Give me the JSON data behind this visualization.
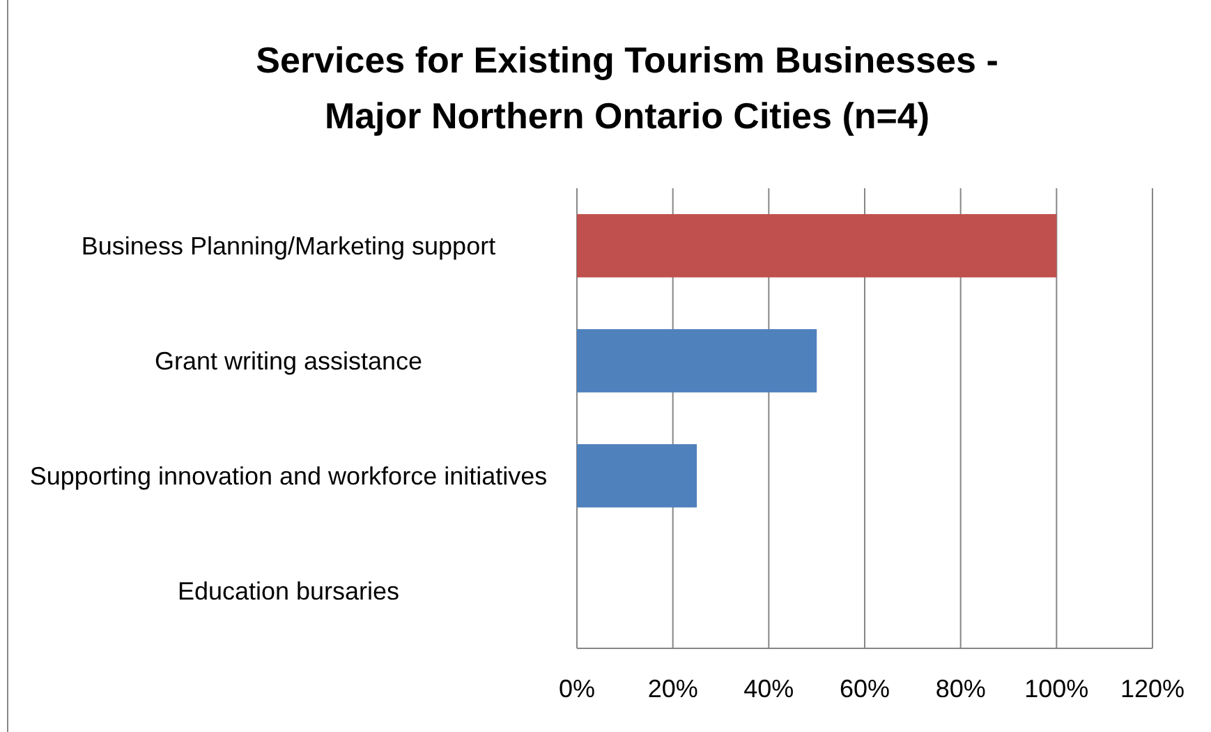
{
  "chart_data": {
    "type": "bar",
    "orientation": "horizontal",
    "title": "Services for Existing Tourism Businesses  -\nMajor Northern Ontario Cities (n=4)",
    "categories": [
      "Business Planning/Marketing support",
      "Grant writing assistance",
      "Supporting innovation and workforce initiatives",
      "Education bursaries"
    ],
    "values": [
      100,
      50,
      25,
      0
    ],
    "colors": [
      "#c0504d",
      "#4f81bd",
      "#4f81bd",
      "#4f81bd"
    ],
    "xlim": [
      0,
      120
    ],
    "xticks": [
      {
        "value": 0,
        "label": "0%"
      },
      {
        "value": 20,
        "label": "20%"
      },
      {
        "value": 40,
        "label": "40%"
      },
      {
        "value": 60,
        "label": "60%"
      },
      {
        "value": 80,
        "label": "80%"
      },
      {
        "value": 100,
        "label": "100%"
      },
      {
        "value": 120,
        "label": "120%"
      }
    ],
    "grid": "x"
  }
}
